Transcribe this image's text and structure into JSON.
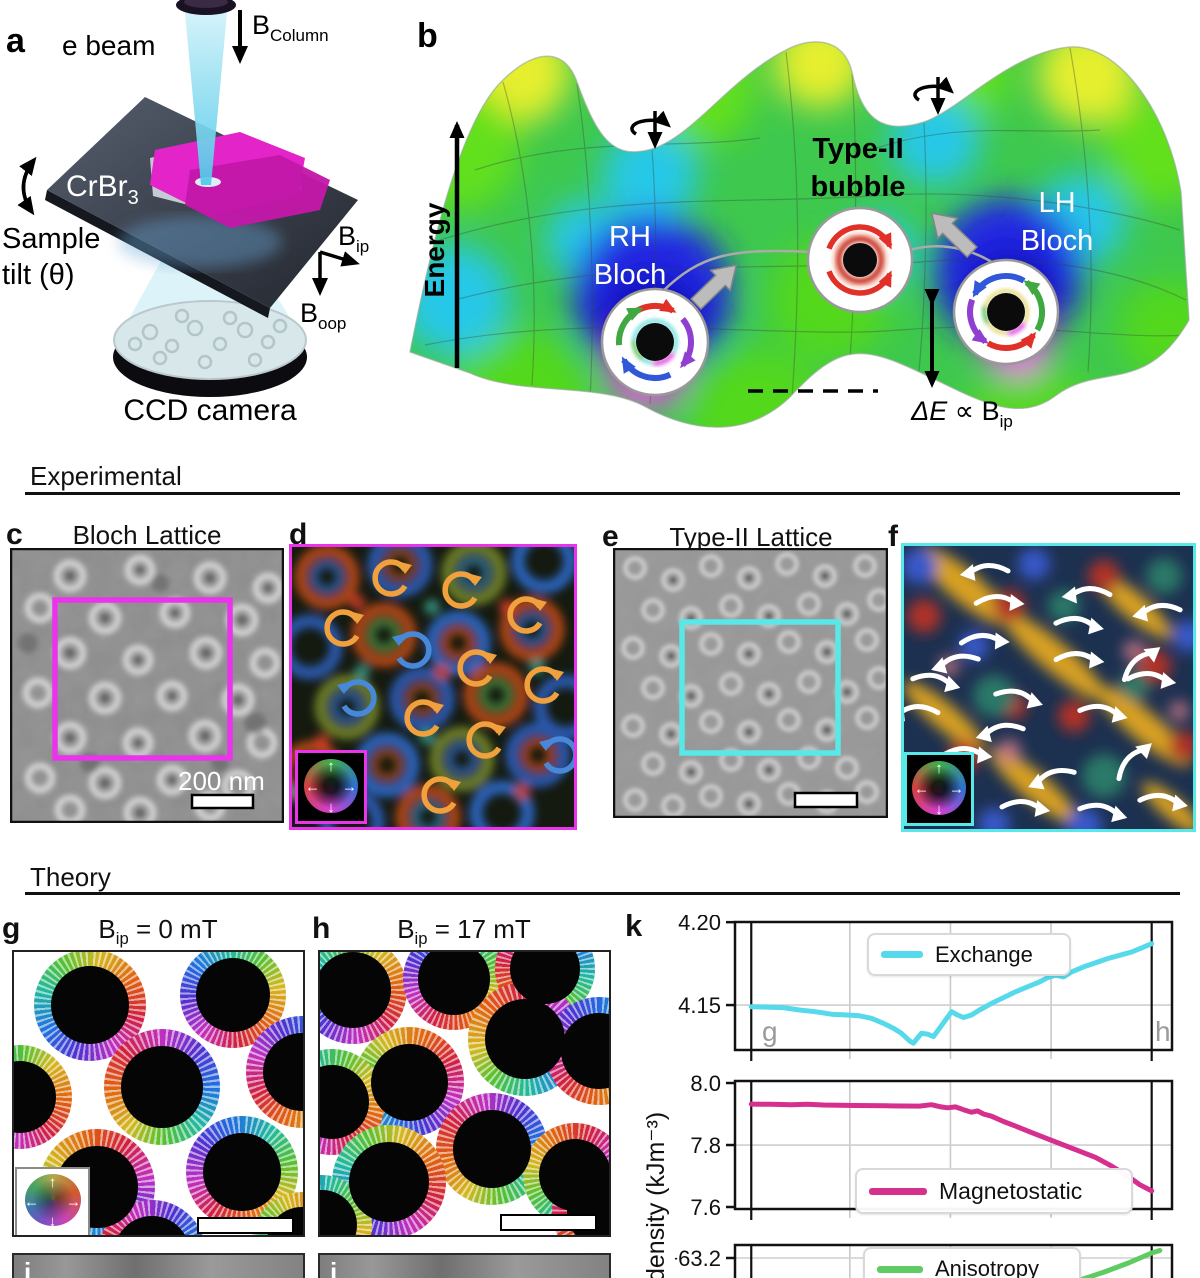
{
  "panel_a": {
    "label": "a",
    "e_beam": "e beam",
    "b_column_base": "B",
    "b_column_sub": "Column",
    "material_base": "CrBr",
    "material_sub": "3",
    "sample_tilt_1": "Sample",
    "sample_tilt_2": "tilt (θ)",
    "b_ip_base": "B",
    "b_ip_sub": "ip",
    "b_oop_base": "B",
    "b_oop_sub": "oop",
    "camera": "CCD camera"
  },
  "panel_b": {
    "label": "b",
    "energy_axis": "Energy",
    "type2_1": "Type-II",
    "type2_2": "bubble",
    "rh_1": "RH",
    "rh_2": "Bloch",
    "lh_1": "LH",
    "lh_2": "Bloch",
    "delta": "ΔE",
    "prop": " ∝ B",
    "prop_sub": "ip"
  },
  "sections": {
    "experimental": "Experimental",
    "theory": "Theory"
  },
  "panel_c": {
    "label": "c",
    "title": "Bloch Lattice",
    "scalebar_text": "200 nm"
  },
  "panel_d": {
    "label": "d"
  },
  "panel_e": {
    "label": "e",
    "title": "Type-II Lattice"
  },
  "panel_f": {
    "label": "f"
  },
  "panel_g": {
    "label": "g",
    "title_base": "B",
    "title_sub": "ip",
    "title_rest": " = 0 mT"
  },
  "panel_h": {
    "label": "h",
    "title_base": "B",
    "title_sub": "ip",
    "title_rest": " = 17 mT"
  },
  "panel_i": {
    "label": "i"
  },
  "panel_j": {
    "label": "j"
  },
  "panel_k": {
    "label": "k",
    "ylabel": "density (kJm⁻³)",
    "marker_left": "g",
    "marker_right": "h"
  },
  "colors": {
    "exchange": "#56d9ea",
    "magnetostatic": "#d6308f",
    "anisotropy": "#5ecb63",
    "bloch_box": "#ea33ea",
    "type2_box": "#59e8e8"
  },
  "chart_data": [
    {
      "id": "exchange",
      "type": "line",
      "legend": "Exchange",
      "color": "#56d9ea",
      "ylim": [
        4.1229,
        4.2001
      ],
      "yticks": [
        {
          "v": 4.2,
          "label": "4.20"
        },
        {
          "v": 4.15,
          "label": "4.15"
        }
      ],
      "grid_y": [
        4.15
      ],
      "grid_x": [
        0.2628,
        0.493,
        0.7233
      ],
      "marker_x": [
        0.0372,
        0.9535
      ],
      "x_range": [
        0.0372,
        0.9535
      ],
      "x": [
        0,
        0.04,
        0.08,
        0.12,
        0.16,
        0.2,
        0.24,
        0.27,
        0.3,
        0.33,
        0.355,
        0.375,
        0.395,
        0.405,
        0.415,
        0.425,
        0.44,
        0.455,
        0.47,
        0.485,
        0.5,
        0.515,
        0.53,
        0.55,
        0.57,
        0.6,
        0.63,
        0.66,
        0.69,
        0.72,
        0.74,
        0.76,
        0.78,
        0.8,
        0.83,
        0.86,
        0.89,
        0.92,
        0.95,
        0.97,
        1
      ],
      "values": [
        4.149,
        4.1488,
        4.1485,
        4.147,
        4.146,
        4.1445,
        4.144,
        4.1435,
        4.142,
        4.139,
        4.136,
        4.133,
        4.1285,
        4.127,
        4.13,
        4.133,
        4.1325,
        4.131,
        4.136,
        4.141,
        4.146,
        4.144,
        4.1425,
        4.144,
        4.147,
        4.151,
        4.1545,
        4.158,
        4.161,
        4.164,
        4.1665,
        4.168,
        4.167,
        4.17,
        4.173,
        4.1755,
        4.178,
        4.18,
        4.182,
        4.184,
        4.187
      ]
    },
    {
      "id": "magnetostatic",
      "type": "line",
      "legend": "Magnetostatic",
      "color": "#d6308f",
      "ylim": [
        7.5936,
        8.0065
      ],
      "yticks": [
        {
          "v": 8.0,
          "label": "8.0"
        },
        {
          "v": 7.8,
          "label": "7.8"
        },
        {
          "v": 7.6,
          "label": "7.6"
        }
      ],
      "grid_y": [
        7.8
      ],
      "grid_x": [
        0.2628,
        0.493,
        0.7233
      ],
      "marker_x": [
        0.0372,
        0.9535
      ],
      "x_range": [
        0.0372,
        0.9535
      ],
      "x": [
        0,
        0.05,
        0.1,
        0.14,
        0.18,
        0.22,
        0.26,
        0.3,
        0.34,
        0.38,
        0.42,
        0.45,
        0.47,
        0.49,
        0.51,
        0.53,
        0.55,
        0.565,
        0.58,
        0.6,
        0.63,
        0.66,
        0.7,
        0.74,
        0.78,
        0.82,
        0.86,
        0.9,
        0.94,
        0.97,
        1
      ],
      "values": [
        7.932,
        7.9315,
        7.93,
        7.9315,
        7.929,
        7.928,
        7.9275,
        7.927,
        7.9265,
        7.926,
        7.9255,
        7.93,
        7.924,
        7.92,
        7.923,
        7.914,
        7.906,
        7.91,
        7.9,
        7.893,
        7.876,
        7.861,
        7.84,
        7.82,
        7.8,
        7.78,
        7.76,
        7.732,
        7.7,
        7.672,
        7.652
      ]
    },
    {
      "id": "anisotropy",
      "type": "line",
      "legend": "Anisotropy",
      "color": "#5ecb63",
      "ylim": [
        -63.65,
        -63.07
      ],
      "yticks": [
        {
          "v": -63.2,
          "label": "−63.2"
        }
      ],
      "grid_y": [
        -63.2
      ],
      "grid_x": [
        0.2628,
        0.493,
        0.7233
      ],
      "marker_x": [
        0.0372,
        0.9535
      ],
      "x_range": [
        0,
        1
      ],
      "x": [
        0.735,
        0.79,
        0.845,
        0.9,
        0.9535,
        0.972
      ],
      "values": [
        -63.52,
        -63.42,
        -63.34,
        -63.25,
        -63.15,
        -63.125
      ]
    }
  ]
}
